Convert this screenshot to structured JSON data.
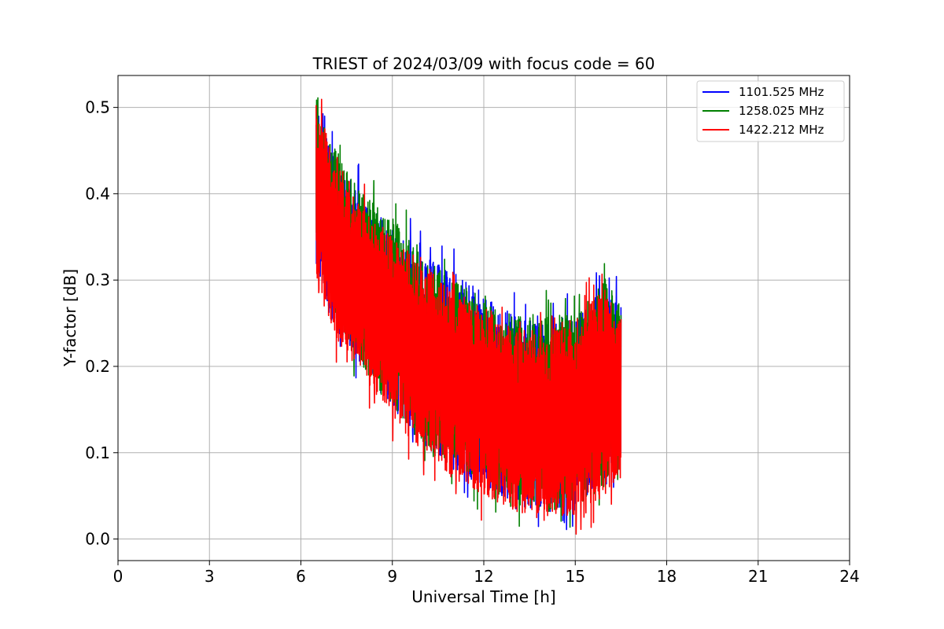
{
  "chart_data": {
    "type": "line",
    "title": "TRIEST of 2024/03/09 with focus code = 60",
    "xlabel": "Universal Time [h]",
    "ylabel": "Y-factor [dB]",
    "xlim": [
      0,
      24
    ],
    "ylim": [
      -0.025,
      0.537
    ],
    "xticks": [
      0,
      3,
      6,
      9,
      12,
      15,
      18,
      21,
      24
    ],
    "yticks": [
      0.0,
      0.1,
      0.2,
      0.3,
      0.4,
      0.5
    ],
    "ytick_labels": [
      "0.0",
      "0.1",
      "0.2",
      "0.3",
      "0.4",
      "0.5"
    ],
    "grid": true,
    "legend_position": "top-right",
    "x_range_of_data": [
      6.5,
      16.5
    ],
    "series": [
      {
        "name": "1101.525 MHz",
        "color": "#0000ff",
        "upper_envelope": [
          [
            6.5,
            0.5
          ],
          [
            7.0,
            0.45
          ],
          [
            8.0,
            0.4
          ],
          [
            9.0,
            0.36
          ],
          [
            10.0,
            0.33
          ],
          [
            11.0,
            0.31
          ],
          [
            12.0,
            0.28
          ],
          [
            13.0,
            0.26
          ],
          [
            14.0,
            0.25
          ],
          [
            15.0,
            0.26
          ],
          [
            16.0,
            0.29
          ],
          [
            16.5,
            0.27
          ]
        ],
        "lower_envelope": [
          [
            6.5,
            0.32
          ],
          [
            7.0,
            0.25
          ],
          [
            8.0,
            0.2
          ],
          [
            9.0,
            0.15
          ],
          [
            10.0,
            0.11
          ],
          [
            11.0,
            0.08
          ],
          [
            12.0,
            0.06
          ],
          [
            13.0,
            0.04
          ],
          [
            14.0,
            0.03
          ],
          [
            15.0,
            0.04
          ],
          [
            16.0,
            0.06
          ],
          [
            16.5,
            0.08
          ]
        ]
      },
      {
        "name": "1258.025 MHz",
        "color": "#008000",
        "upper_envelope": [
          [
            6.5,
            0.5
          ],
          [
            7.0,
            0.46
          ],
          [
            8.0,
            0.4
          ],
          [
            9.0,
            0.37
          ],
          [
            10.0,
            0.33
          ],
          [
            11.0,
            0.3
          ],
          [
            12.0,
            0.28
          ],
          [
            13.0,
            0.26
          ],
          [
            14.0,
            0.26
          ],
          [
            15.0,
            0.26
          ],
          [
            16.0,
            0.3
          ],
          [
            16.5,
            0.27
          ]
        ],
        "lower_envelope": [
          [
            6.5,
            0.33
          ],
          [
            7.0,
            0.26
          ],
          [
            8.0,
            0.2
          ],
          [
            9.0,
            0.15
          ],
          [
            10.0,
            0.11
          ],
          [
            11.0,
            0.08
          ],
          [
            12.0,
            0.06
          ],
          [
            13.0,
            0.04
          ],
          [
            14.0,
            0.03
          ],
          [
            15.0,
            0.04
          ],
          [
            16.0,
            0.06
          ],
          [
            16.5,
            0.07
          ]
        ]
      },
      {
        "name": "1422.212 MHz",
        "color": "#ff0000",
        "upper_envelope": [
          [
            6.5,
            0.51
          ],
          [
            7.0,
            0.45
          ],
          [
            8.0,
            0.39
          ],
          [
            9.0,
            0.35
          ],
          [
            10.0,
            0.32
          ],
          [
            11.0,
            0.29
          ],
          [
            12.0,
            0.27
          ],
          [
            13.0,
            0.25
          ],
          [
            14.0,
            0.24
          ],
          [
            15.0,
            0.26
          ],
          [
            16.0,
            0.29
          ],
          [
            16.5,
            0.26
          ]
        ],
        "lower_envelope": [
          [
            6.5,
            0.3
          ],
          [
            7.0,
            0.24
          ],
          [
            8.0,
            0.19
          ],
          [
            9.0,
            0.14
          ],
          [
            10.0,
            0.1
          ],
          [
            11.0,
            0.07
          ],
          [
            12.0,
            0.05
          ],
          [
            13.0,
            0.03
          ],
          [
            14.0,
            0.02
          ],
          [
            15.0,
            0.03
          ],
          [
            16.0,
            0.05
          ],
          [
            16.5,
            0.07
          ]
        ]
      }
    ]
  }
}
